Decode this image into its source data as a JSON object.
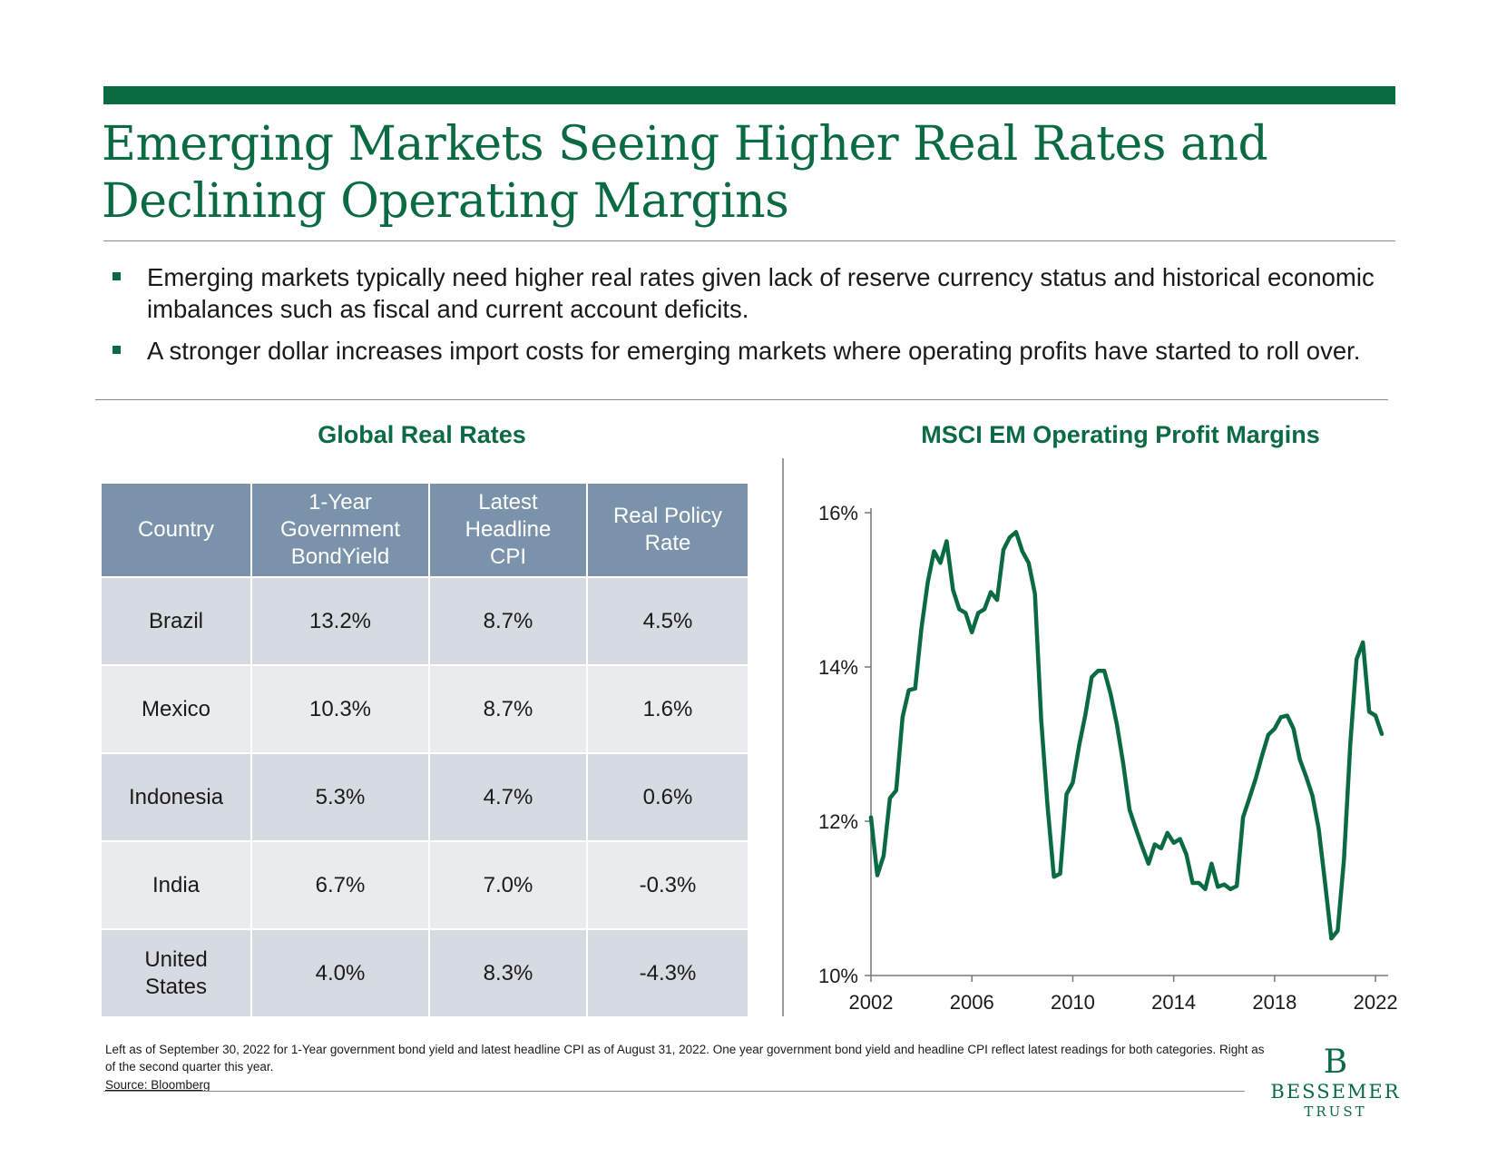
{
  "header": {
    "title_line1": "Emerging Markets Seeing Higher Real Rates and",
    "title_line2": "Declining Operating Margins"
  },
  "bullets": [
    "Emerging markets typically need higher real rates given lack of reserve currency status and historical economic imbalances such as fiscal and current account deficits.",
    "A stronger dollar increases import costs for emerging markets where operating profits have started to roll over."
  ],
  "table": {
    "title": "Global Real Rates",
    "headers": [
      "Country",
      "1-Year Government BondYield",
      "Latest Headline CPI",
      "Real Policy Rate"
    ],
    "rows": [
      [
        "Brazil",
        "13.2%",
        "8.7%",
        "4.5%"
      ],
      [
        "Mexico",
        "10.3%",
        "8.7%",
        "1.6%"
      ],
      [
        "Indonesia",
        "5.3%",
        "4.7%",
        "0.6%"
      ],
      [
        "India",
        "6.7%",
        "7.0%",
        "-0.3%"
      ],
      [
        "United States",
        "4.0%",
        "8.3%",
        "-4.3%"
      ]
    ]
  },
  "chart_data": {
    "type": "line",
    "title": "MSCI EM Operating Profit Margins",
    "xlabel": "",
    "ylabel": "",
    "xlim": [
      2002,
      2022.5
    ],
    "ylim": [
      10,
      16
    ],
    "x_ticks": [
      2002,
      2006,
      2010,
      2014,
      2018,
      2022
    ],
    "y_ticks": [
      10,
      12,
      14,
      16
    ],
    "y_tick_labels": [
      "10%",
      "12%",
      "14%",
      "16%"
    ],
    "grid": false,
    "legend": "none",
    "color": "#0a6b43",
    "series": [
      {
        "x": [
          2002.0,
          2002.25,
          2002.5,
          2002.75,
          2003.0,
          2003.25,
          2003.5,
          2003.75,
          2004.0,
          2004.25,
          2004.5,
          2004.75,
          2005.0,
          2005.25,
          2005.5,
          2005.75,
          2006.0,
          2006.25,
          2006.5,
          2006.75,
          2007.0,
          2007.25,
          2007.5,
          2007.75,
          2008.0,
          2008.25,
          2008.5,
          2008.75,
          2009.0,
          2009.25,
          2009.5,
          2009.75,
          2010.0,
          2010.25,
          2010.5,
          2010.75,
          2011.0,
          2011.25,
          2011.5,
          2011.75,
          2012.0,
          2012.25,
          2012.5,
          2012.75,
          2013.0,
          2013.25,
          2013.5,
          2013.75,
          2014.0,
          2014.25,
          2014.5,
          2014.75,
          2015.0,
          2015.25,
          2015.5,
          2015.75,
          2016.0,
          2016.25,
          2016.5,
          2016.75,
          2017.0,
          2017.25,
          2017.5,
          2017.75,
          2018.0,
          2018.25,
          2018.5,
          2018.75,
          2019.0,
          2019.25,
          2019.5,
          2019.75,
          2020.0,
          2020.25,
          2020.5,
          2020.75,
          2021.0,
          2021.25,
          2021.5,
          2021.75,
          2022.0,
          2022.25
        ],
        "values": [
          12.05,
          11.3,
          11.55,
          12.3,
          12.4,
          13.35,
          13.7,
          13.72,
          14.5,
          15.1,
          15.5,
          15.35,
          15.63,
          15.0,
          14.75,
          14.7,
          14.45,
          14.7,
          14.75,
          14.97,
          14.87,
          15.52,
          15.68,
          15.75,
          15.5,
          15.35,
          14.95,
          13.3,
          12.2,
          11.28,
          11.32,
          12.35,
          12.5,
          12.98,
          13.38,
          13.87,
          13.95,
          13.95,
          13.65,
          13.25,
          12.75,
          12.15,
          11.9,
          11.67,
          11.45,
          11.7,
          11.65,
          11.85,
          11.72,
          11.77,
          11.57,
          11.2,
          11.2,
          11.12,
          11.45,
          11.15,
          11.18,
          11.12,
          11.16,
          12.05,
          12.3,
          12.55,
          12.85,
          13.12,
          13.2,
          13.35,
          13.37,
          13.2,
          12.8,
          12.58,
          12.33,
          11.9,
          11.2,
          10.48,
          10.58,
          11.5,
          13.0,
          14.1,
          14.32,
          13.42,
          13.37,
          13.13
        ]
      }
    ]
  },
  "footnote": "Left as of September 30, 2022 for 1-Year government bond yield and latest headline CPI as of August 31, 2022. One year government bond yield and headline CPI reflect latest readings for both categories. Right as of the second quarter this year.",
  "source": "Source: Bloomberg",
  "logo": {
    "mark": "B",
    "name": "BESSEMER",
    "sub": "TRUST"
  }
}
